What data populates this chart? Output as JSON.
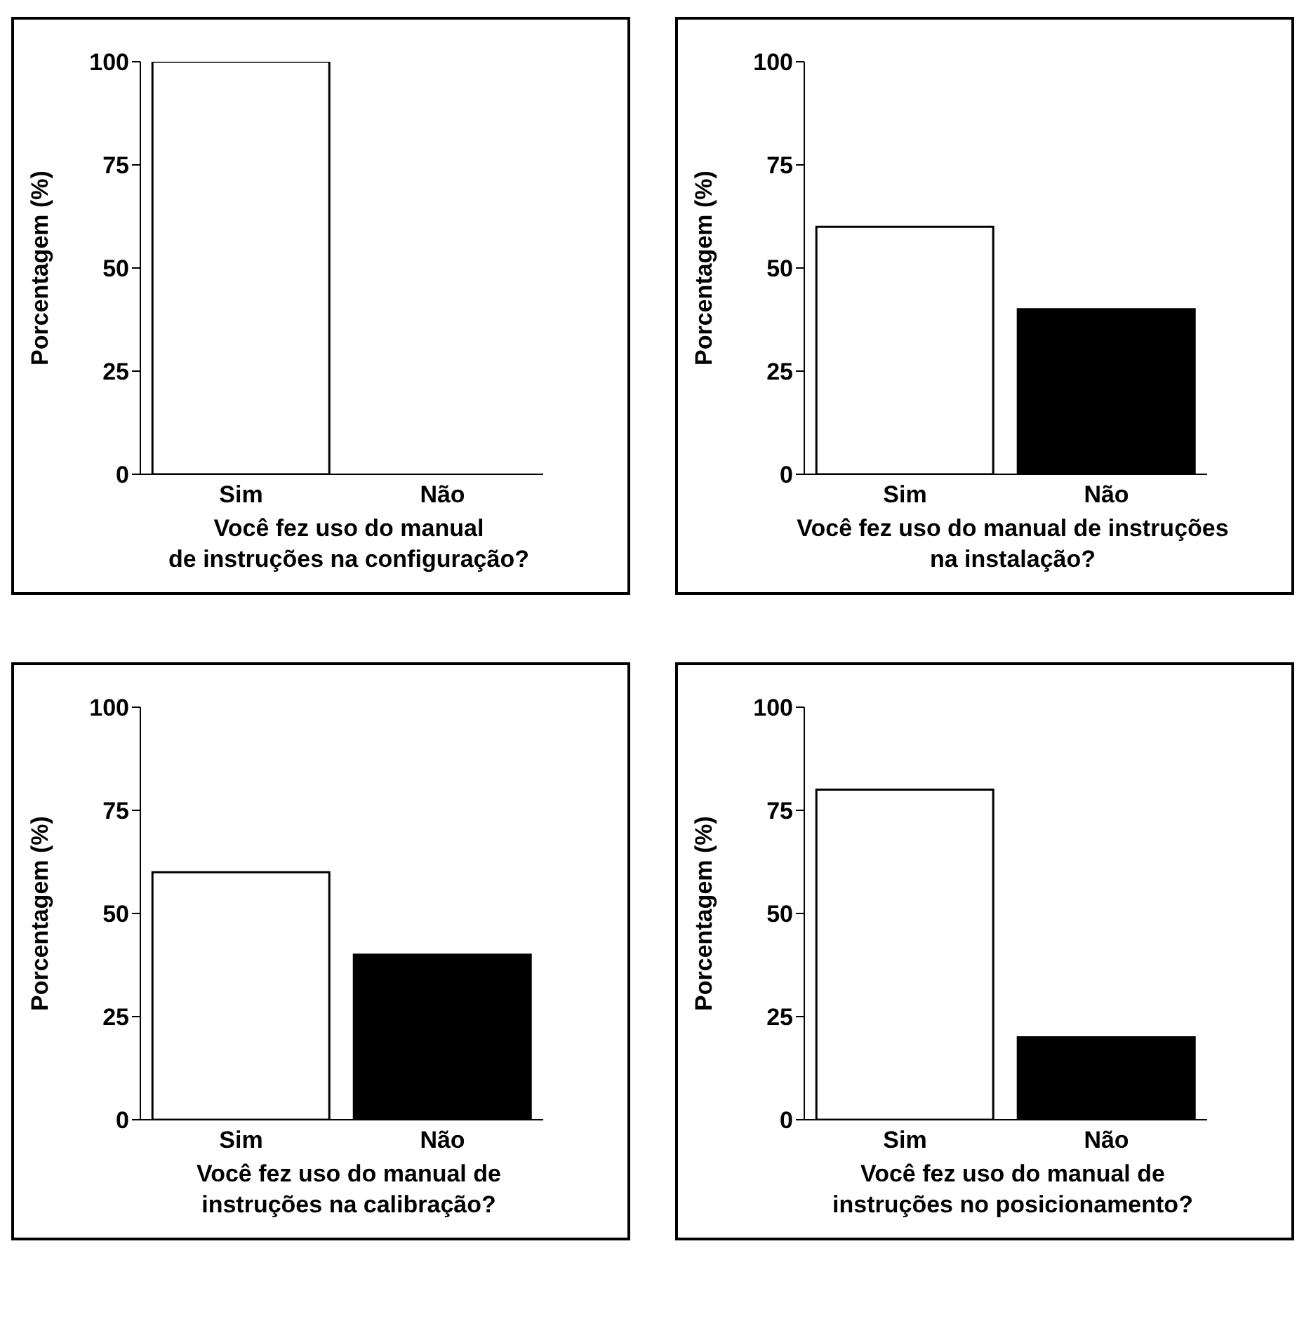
{
  "chart_data": [
    {
      "type": "bar",
      "categories": [
        "Sim",
        "Não"
      ],
      "values": [
        100,
        0
      ],
      "colors": [
        "#ffffff",
        "#000000"
      ],
      "ylabel": "Porcentagem (%)",
      "xlabel": "Você fez uso do manual\nde instruções na configuração?",
      "ylim": [
        0,
        100
      ],
      "yticks": [
        0,
        25,
        50,
        75,
        100
      ],
      "grid": false,
      "legend": false
    },
    {
      "type": "bar",
      "categories": [
        "Sim",
        "Não"
      ],
      "values": [
        60,
        40
      ],
      "colors": [
        "#ffffff",
        "#000000"
      ],
      "ylabel": "Porcentagem (%)",
      "xlabel": "Você fez uso do manual de instruções\nna instalação?",
      "ylim": [
        0,
        100
      ],
      "yticks": [
        0,
        25,
        50,
        75,
        100
      ],
      "grid": false,
      "legend": false
    },
    {
      "type": "bar",
      "categories": [
        "Sim",
        "Não"
      ],
      "values": [
        60,
        40
      ],
      "colors": [
        "#ffffff",
        "#000000"
      ],
      "ylabel": "Porcentagem (%)",
      "xlabel": "Você fez uso do manual de\ninstruções na calibração?",
      "ylim": [
        0,
        100
      ],
      "yticks": [
        0,
        25,
        50,
        75,
        100
      ],
      "grid": false,
      "legend": false
    },
    {
      "type": "bar",
      "categories": [
        "Sim",
        "Não"
      ],
      "values": [
        80,
        20
      ],
      "colors": [
        "#ffffff",
        "#000000"
      ],
      "ylabel": "Porcentagem (%)",
      "xlabel": "Você fez uso do manual de\ninstruções no posicionamento?",
      "ylim": [
        0,
        100
      ],
      "yticks": [
        0,
        25,
        50,
        75,
        100
      ],
      "grid": false,
      "legend": false
    }
  ]
}
